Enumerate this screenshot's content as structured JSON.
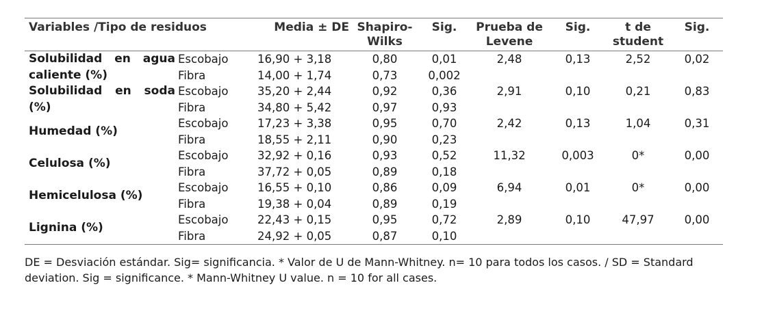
{
  "table": {
    "headers": [
      "Variables /Tipo de residuos",
      "Media ± DE",
      "Shapiro-\nWilks",
      "Sig.",
      "Prueba de\nLevene",
      "Sig.",
      "t de\nstudent",
      "Sig."
    ],
    "groups": [
      {
        "variable": "Solubilidad en agua caliente (%)",
        "rows": [
          {
            "type": "Escobajo",
            "mean": "16,90 + 3,18",
            "shapiro": "0,80",
            "sig1": "0,01",
            "levene": "2,48",
            "sig2": "0,13",
            "t": "2,52",
            "sig3": "0,02"
          },
          {
            "type": "Fibra",
            "mean": "14,00 + 1,74",
            "shapiro": "0,73",
            "sig1": "0,002",
            "levene": "",
            "sig2": "",
            "t": "",
            "sig3": ""
          }
        ]
      },
      {
        "variable": "Solubilidad en soda (%)",
        "rows": [
          {
            "type": "Escobajo",
            "mean": "35,20 + 2,44",
            "shapiro": "0,92",
            "sig1": "0,36",
            "levene": "2,91",
            "sig2": "0,10",
            "t": "0,21",
            "sig3": "0,83"
          },
          {
            "type": "Fibra",
            "mean": "34,80 + 5,42",
            "shapiro": "0,97",
            "sig1": "0,93",
            "levene": "",
            "sig2": "",
            "t": "",
            "sig3": ""
          }
        ]
      },
      {
        "variable": "Humedad (%)",
        "rows": [
          {
            "type": "Escobajo",
            "mean": "17,23 + 3,38",
            "shapiro": "0,95",
            "sig1": "0,70",
            "levene": "2,42",
            "sig2": "0,13",
            "t": "1,04",
            "sig3": "0,31"
          },
          {
            "type": "Fibra",
            "mean": "18,55 + 2,11",
            "shapiro": "0,90",
            "sig1": "0,23",
            "levene": "",
            "sig2": "",
            "t": "",
            "sig3": ""
          }
        ]
      },
      {
        "variable": "Celulosa (%)",
        "rows": [
          {
            "type": "Escobajo",
            "mean": "32,92 + 0,16",
            "shapiro": "0,93",
            "sig1": "0,52",
            "levene": "11,32",
            "sig2": "0,003",
            "t": "0*",
            "sig3": "0,00"
          },
          {
            "type": "Fibra",
            "mean": "37,72 + 0,05",
            "shapiro": "0,89",
            "sig1": "0,18",
            "levene": "",
            "sig2": "",
            "t": "",
            "sig3": ""
          }
        ]
      },
      {
        "variable": "Hemicelulosa (%)",
        "rows": [
          {
            "type": "Escobajo",
            "mean": "16,55 + 0,10",
            "shapiro": "0,86",
            "sig1": "0,09",
            "levene": "6,94",
            "sig2": "0,01",
            "t": "0*",
            "sig3": "0,00"
          },
          {
            "type": "Fibra",
            "mean": "19,38 + 0,04",
            "shapiro": "0,89",
            "sig1": "0,19",
            "levene": "",
            "sig2": "",
            "t": "",
            "sig3": ""
          }
        ]
      },
      {
        "variable": "Lignina (%)",
        "rows": [
          {
            "type": "Escobajo",
            "mean": "22,43 + 0,15",
            "shapiro": "0,95",
            "sig1": "0,72",
            "levene": "2,89",
            "sig2": "0,10",
            "t": "47,97",
            "sig3": "0,00"
          },
          {
            "type": "Fibra",
            "mean": "24,92 + 0,05",
            "shapiro": "0,87",
            "sig1": "0,10",
            "levene": "",
            "sig2": "",
            "t": "",
            "sig3": ""
          }
        ]
      }
    ]
  },
  "footnote": "DE = Desviación estándar. Sig= significancia. * Valor de U de Mann-Whitney. n= 10 para todos los casos. / SD = Standard deviation. Sig = significance. * Mann-Whitney U value. n = 10 for all cases."
}
